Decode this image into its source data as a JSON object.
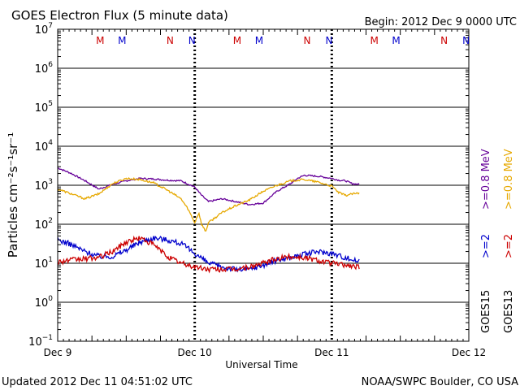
{
  "chart_data": {
    "type": "line",
    "title": "GOES Electron Flux (5 minute data)",
    "begin_label": "Begin: 2012 Dec 9 0000 UTC",
    "xlabel": "Universal Time",
    "ylabel": "Particles cm⁻²s⁻¹sr⁻¹",
    "footer_left": "Updated 2012 Dec 11 04:51:02 UTC",
    "footer_right": "NOAA/SWPC Boulder, CO USA",
    "y_scale": "log",
    "ylim_exponent": [
      -1,
      7
    ],
    "y_ticks": [
      {
        "base": "10",
        "exp": "7"
      },
      {
        "base": "10",
        "exp": "6"
      },
      {
        "base": "10",
        "exp": "5"
      },
      {
        "base": "10",
        "exp": "4"
      },
      {
        "base": "10",
        "exp": "3"
      },
      {
        "base": "10",
        "exp": "2"
      },
      {
        "base": "10",
        "exp": "1"
      },
      {
        "base": "10",
        "exp": "0"
      },
      {
        "base": "10",
        "exp": "−1"
      }
    ],
    "xlim_days": [
      0,
      3
    ],
    "x_ticks": [
      "Dec 9",
      "Dec 10",
      "Dec 11",
      "Dec 12"
    ],
    "threshold": {
      "value": 1000,
      "style": "dashed"
    },
    "mn_markers": [
      {
        "label": "M",
        "day": 0.31,
        "color": "#cc0000"
      },
      {
        "label": "M",
        "day": 0.47,
        "color": "#0000cc"
      },
      {
        "label": "N",
        "day": 0.82,
        "color": "#cc0000"
      },
      {
        "label": "N",
        "day": 0.98,
        "color": "#0000cc"
      },
      {
        "label": "M",
        "day": 1.31,
        "color": "#cc0000"
      },
      {
        "label": "M",
        "day": 1.47,
        "color": "#0000cc"
      },
      {
        "label": "N",
        "day": 1.82,
        "color": "#cc0000"
      },
      {
        "label": "N",
        "day": 1.98,
        "color": "#0000cc"
      },
      {
        "label": "M",
        "day": 2.31,
        "color": "#cc0000"
      },
      {
        "label": "M",
        "day": 2.47,
        "color": "#0000cc"
      },
      {
        "label": "N",
        "day": 2.82,
        "color": "#cc0000"
      },
      {
        "label": "N",
        "day": 2.98,
        "color": "#0000cc"
      }
    ],
    "legend": {
      "placement": "right",
      "columns": [
        {
          "sat": "GOES15",
          "entries": [
            {
              "label": ">=2",
              "color": "#0000cc"
            },
            {
              "label": ">=0.8 MeV",
              "color": "#660099"
            }
          ]
        },
        {
          "sat": "GOES13",
          "entries": [
            {
              "label": ">=2",
              "color": "#cc0000"
            },
            {
              "label": ">=0.8 MeV",
              "color": "#e6a800"
            }
          ]
        }
      ]
    },
    "series": [
      {
        "name": "GOES15 >=0.8 MeV",
        "color": "#660099",
        "noise": 0.02,
        "x": [
          0,
          0.1,
          0.2,
          0.3,
          0.4,
          0.5,
          0.6,
          0.7,
          0.8,
          0.9,
          1.0,
          1.05,
          1.1,
          1.2,
          1.3,
          1.4,
          1.5,
          1.6,
          1.7,
          1.75,
          1.8,
          1.9,
          2.0,
          2.05,
          2.1,
          2.15,
          2.2
        ],
        "y": [
          2800,
          2000,
          1300,
          800,
          1050,
          1300,
          1500,
          1450,
          1350,
          1300,
          900,
          550,
          380,
          450,
          380,
          320,
          350,
          700,
          1100,
          1500,
          1800,
          1700,
          1500,
          1350,
          1300,
          1100,
          1050
        ]
      },
      {
        "name": "GOES13 >=0.8 MeV",
        "color": "#e6a800",
        "noise": 0.025,
        "x": [
          0,
          0.1,
          0.2,
          0.3,
          0.4,
          0.5,
          0.6,
          0.7,
          0.8,
          0.9,
          0.95,
          1.0,
          1.03,
          1.05,
          1.08,
          1.1,
          1.2,
          1.3,
          1.4,
          1.5,
          1.6,
          1.7,
          1.8,
          1.9,
          2.0,
          2.05,
          2.1,
          2.15,
          2.2
        ],
        "y": [
          800,
          600,
          450,
          600,
          1100,
          1500,
          1400,
          1150,
          750,
          450,
          250,
          110,
          200,
          100,
          65,
          110,
          200,
          300,
          420,
          700,
          1000,
          1300,
          1400,
          1200,
          950,
          650,
          550,
          600,
          620
        ]
      },
      {
        "name": "GOES15 >=2 MeV",
        "color": "#0000cc",
        "noise": 0.07,
        "x": [
          0,
          0.1,
          0.2,
          0.3,
          0.4,
          0.5,
          0.6,
          0.7,
          0.8,
          0.9,
          1.0,
          1.1,
          1.2,
          1.3,
          1.4,
          1.5,
          1.6,
          1.7,
          1.8,
          1.9,
          2.0,
          2.1,
          2.2
        ],
        "y": [
          40,
          30,
          20,
          15,
          15,
          22,
          35,
          45,
          40,
          32,
          18,
          10,
          8,
          7,
          7,
          9,
          12,
          14,
          17,
          20,
          18,
          14,
          11
        ]
      },
      {
        "name": "GOES13 >=2 MeV",
        "color": "#cc0000",
        "noise": 0.07,
        "x": [
          0,
          0.1,
          0.2,
          0.3,
          0.4,
          0.5,
          0.6,
          0.7,
          0.8,
          0.9,
          1.0,
          1.1,
          1.2,
          1.3,
          1.4,
          1.5,
          1.6,
          1.7,
          1.8,
          1.9,
          2.0,
          2.1,
          2.2
        ],
        "y": [
          11,
          12,
          13,
          14,
          20,
          35,
          45,
          30,
          15,
          10,
          8,
          7,
          7,
          7,
          8,
          10,
          13,
          15,
          14,
          12,
          10,
          9,
          8
        ]
      }
    ]
  }
}
